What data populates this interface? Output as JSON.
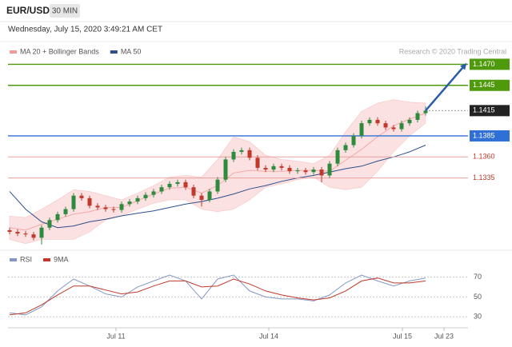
{
  "header": {
    "symbol": "EUR/USD",
    "interval": "30 MIN",
    "timestamp": "Wednesday, July 15, 2020 3:49:21 AM CET"
  },
  "chart_data": [
    {
      "type": "candlestick",
      "source": "Research © 2020 Trading Central",
      "up_color": "#2e8b3e",
      "down_color": "#c0392b",
      "xlim": [
        -0.2,
        57.3
      ],
      "ylim": [
        1.1252,
        1.1478
      ],
      "x": [
        0,
        1,
        2,
        3,
        4,
        5,
        6,
        7,
        8,
        9,
        10,
        11,
        12,
        13,
        14,
        15,
        16,
        17,
        18,
        19,
        20,
        21,
        22,
        23,
        24,
        25,
        26,
        27,
        28,
        29,
        30,
        31,
        32,
        33,
        34,
        35,
        36,
        37,
        38,
        39,
        40,
        41,
        42,
        43,
        44,
        45,
        46,
        47,
        48,
        49,
        50,
        51,
        52
      ],
      "open": [
        1.1273,
        1.1271,
        1.1269,
        1.1268,
        1.1264,
        1.1276,
        1.1285,
        1.1292,
        1.1298,
        1.1314,
        1.1311,
        1.1302,
        1.13,
        1.1298,
        1.1297,
        1.1304,
        1.1307,
        1.1311,
        1.1315,
        1.1319,
        1.1324,
        1.1328,
        1.133,
        1.1324,
        1.1314,
        1.1309,
        1.1319,
        1.1333,
        1.1357,
        1.1366,
        1.1368,
        1.1359,
        1.1347,
        1.1345,
        1.1349,
        1.1347,
        1.1343,
        1.1344,
        1.1342,
        1.1345,
        1.1338,
        1.1352,
        1.1368,
        1.1374,
        1.1385,
        1.14,
        1.1404,
        1.14,
        1.1395,
        1.1393,
        1.14,
        1.1404,
        1.1412
      ],
      "high": [
        1.1276,
        1.1274,
        1.1272,
        1.1271,
        1.1279,
        1.1288,
        1.1295,
        1.1301,
        1.1317,
        1.1317,
        1.1314,
        1.1305,
        1.1303,
        1.1301,
        1.1307,
        1.131,
        1.1314,
        1.1318,
        1.1322,
        1.1327,
        1.1331,
        1.1333,
        1.1333,
        1.1327,
        1.1317,
        1.1322,
        1.1336,
        1.136,
        1.1369,
        1.1371,
        1.1371,
        1.1362,
        1.135,
        1.1352,
        1.1352,
        1.135,
        1.1347,
        1.1347,
        1.1348,
        1.1348,
        1.1355,
        1.1371,
        1.1377,
        1.1388,
        1.1403,
        1.1407,
        1.1407,
        1.1403,
        1.1398,
        1.1403,
        1.1407,
        1.1415,
        1.142
      ],
      "low": [
        1.1268,
        1.1266,
        1.1265,
        1.1261,
        1.1256,
        1.1273,
        1.1282,
        1.1289,
        1.1295,
        1.1308,
        1.1299,
        1.1297,
        1.1295,
        1.1294,
        1.1294,
        1.1301,
        1.1304,
        1.1308,
        1.1312,
        1.1316,
        1.1321,
        1.1325,
        1.1321,
        1.1311,
        1.1301,
        1.1306,
        1.1316,
        1.133,
        1.1354,
        1.1363,
        1.1356,
        1.1344,
        1.1342,
        1.1342,
        1.1344,
        1.134,
        1.134,
        1.1339,
        1.1339,
        1.133,
        1.1335,
        1.1349,
        1.1365,
        1.1371,
        1.1382,
        1.1397,
        1.1397,
        1.1392,
        1.139,
        1.139,
        1.1397,
        1.1401,
        1.1409
      ],
      "close": [
        1.1271,
        1.1269,
        1.1268,
        1.1264,
        1.1276,
        1.1285,
        1.1292,
        1.1298,
        1.1314,
        1.1311,
        1.1302,
        1.13,
        1.1298,
        1.1297,
        1.1304,
        1.1307,
        1.1311,
        1.1315,
        1.1319,
        1.1324,
        1.1328,
        1.133,
        1.1324,
        1.1314,
        1.1309,
        1.1319,
        1.1333,
        1.1357,
        1.1366,
        1.1368,
        1.1359,
        1.1347,
        1.1345,
        1.1349,
        1.1347,
        1.1343,
        1.1344,
        1.1342,
        1.1345,
        1.1338,
        1.1352,
        1.1368,
        1.1374,
        1.1385,
        1.14,
        1.1404,
        1.14,
        1.1395,
        1.1393,
        1.14,
        1.1404,
        1.1412,
        1.1415
      ],
      "series": [
        {
          "name": "MA 20 + Bollinger Bands",
          "color": "#f29b9b",
          "x": [
            0,
            2,
            4,
            6,
            8,
            10,
            12,
            14,
            16,
            18,
            20,
            22,
            24,
            26,
            28,
            30,
            32,
            34,
            36,
            38,
            40,
            42,
            44,
            46,
            48,
            50,
            52
          ],
          "values": [
            1.1276,
            1.1273,
            1.128,
            1.1286,
            1.1292,
            1.1295,
            1.13,
            1.13,
            1.1308,
            1.1316,
            1.1323,
            1.1324,
            1.1317,
            1.1326,
            1.1341,
            1.1344,
            1.1343,
            1.1343,
            1.1344,
            1.1344,
            1.1343,
            1.1356,
            1.1369,
            1.1384,
            1.1397,
            1.1405,
            1.1412
          ],
          "upper": [
            1.129,
            1.1288,
            1.1298,
            1.1309,
            1.1321,
            1.1319,
            1.1314,
            1.1309,
            1.1317,
            1.1326,
            1.1336,
            1.1338,
            1.1336,
            1.1357,
            1.1384,
            1.1378,
            1.1362,
            1.1357,
            1.1355,
            1.1352,
            1.1362,
            1.139,
            1.1414,
            1.1424,
            1.1428,
            1.1425,
            1.1424
          ],
          "lower": [
            1.1262,
            1.1257,
            1.1262,
            1.1262,
            1.1262,
            1.1271,
            1.1285,
            1.129,
            1.1298,
            1.1305,
            1.1309,
            1.1309,
            1.1298,
            1.1295,
            1.1298,
            1.1309,
            1.1324,
            1.1328,
            1.1333,
            1.1336,
            1.1324,
            1.1321,
            1.1324,
            1.1343,
            1.1366,
            1.1385,
            1.14
          ]
        },
        {
          "name": "MA 50",
          "color": "#2c4f8a",
          "x": [
            0,
            2,
            4,
            6,
            8,
            10,
            12,
            14,
            16,
            18,
            20,
            22,
            24,
            26,
            28,
            30,
            32,
            34,
            36,
            38,
            40,
            42,
            44,
            46,
            48,
            50,
            52
          ],
          "values": [
            1.1319,
            1.1298,
            1.1283,
            1.1276,
            1.1278,
            1.1283,
            1.1286,
            1.129,
            1.1293,
            1.1296,
            1.13,
            1.1304,
            1.1307,
            1.1311,
            1.1316,
            1.1322,
            1.1326,
            1.1331,
            1.1335,
            1.1338,
            1.1342,
            1.1346,
            1.1349,
            1.1355,
            1.136,
            1.1366,
            1.1374
          ]
        }
      ],
      "levels": [
        {
          "value": 1.147,
          "label": "1.1470",
          "color": "#4f9a0c",
          "boxed": true
        },
        {
          "value": 1.1445,
          "label": "1.1445",
          "color": "#4f9a0c",
          "boxed": true
        },
        {
          "value": 1.1415,
          "label": "1.1415",
          "color": "#222222",
          "boxed": true,
          "line": "dotted"
        },
        {
          "value": 1.1385,
          "label": "1.1385",
          "color": "#2f6fd6",
          "boxed": true
        },
        {
          "value": 1.136,
          "label": "1.1360",
          "color": "#c0392b",
          "boxed": false
        },
        {
          "value": 1.1335,
          "label": "1.1335",
          "color": "#c0392b",
          "boxed": false
        }
      ],
      "projection": {
        "x": [
          52,
          57
        ],
        "y": [
          1.1415,
          1.147
        ],
        "color": "#2a5ca8"
      }
    },
    {
      "type": "line",
      "xlim": [
        -0.2,
        57.3
      ],
      "ylim": [
        19,
        80
      ],
      "yticks": [
        30,
        50,
        70
      ],
      "grid": true,
      "xticks": [
        {
          "value": 13.3,
          "label": "Jul 11"
        },
        {
          "value": 32.4,
          "label": "Jul 14"
        },
        {
          "value": 49.1,
          "label": "Jul 15"
        },
        {
          "value": 54.3,
          "label": "Jul 23"
        }
      ],
      "series": [
        {
          "name": "RSI",
          "color": "#8497c4",
          "x": [
            0,
            2,
            4,
            6,
            8,
            10,
            12,
            14,
            16,
            18,
            20,
            22,
            24,
            26,
            28,
            30,
            32,
            34,
            36,
            38,
            40,
            42,
            44,
            46,
            48,
            50,
            52
          ],
          "values": [
            34,
            32,
            40,
            56,
            68,
            61,
            53,
            50,
            60,
            66,
            72,
            66,
            48,
            68,
            72,
            56,
            50,
            48,
            48,
            46,
            52,
            64,
            72,
            66,
            61,
            66,
            69
          ]
        },
        {
          "name": "9MA",
          "color": "#c0392b",
          "x": [
            0,
            2,
            4,
            6,
            8,
            10,
            12,
            14,
            16,
            18,
            20,
            22,
            24,
            26,
            28,
            30,
            32,
            34,
            36,
            38,
            40,
            42,
            44,
            46,
            48,
            50,
            52
          ],
          "values": [
            32,
            34,
            42,
            52,
            61,
            61,
            57,
            53,
            55,
            61,
            66,
            66,
            60,
            61,
            68,
            63,
            56,
            52,
            49,
            47,
            49,
            56,
            66,
            69,
            64,
            64,
            66
          ]
        }
      ]
    }
  ]
}
